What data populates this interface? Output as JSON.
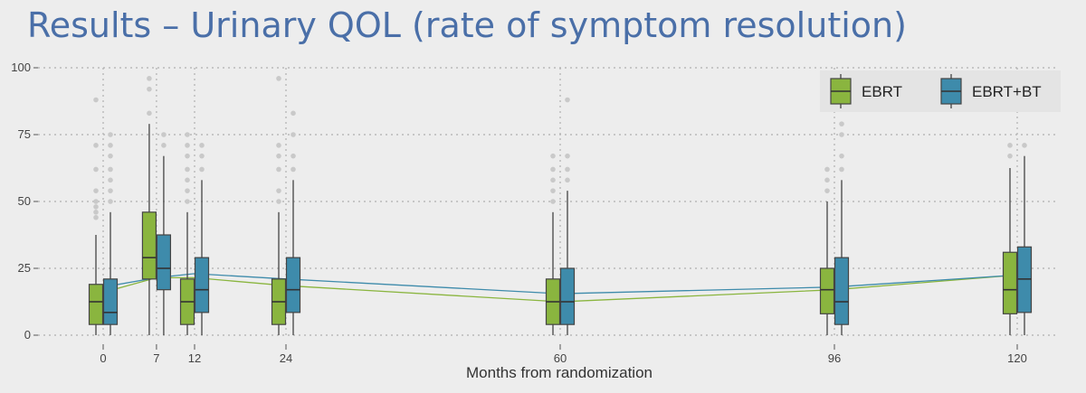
{
  "slide": {
    "title": "Results – Urinary QOL (rate of symptom resolution)"
  },
  "chart_data": {
    "type": "boxplot",
    "title": "",
    "xlabel": "Months from randomization",
    "ylabel": "",
    "x_ticks": [
      0,
      7,
      12,
      24,
      60,
      96,
      120
    ],
    "y_ticks": [
      0,
      25,
      50,
      75,
      100
    ],
    "ylim": [
      0,
      100
    ],
    "grid": true,
    "legend_position": "top-right",
    "series": [
      {
        "name": "EBRT",
        "color": "#8ab53f",
        "boxes": [
          {
            "x": 0,
            "whisker_low": 0,
            "q1": 4,
            "median": 12.5,
            "q3": 19,
            "whisker_high": 37.5,
            "outliers": [
              44,
              46,
              48,
              50,
              54,
              62,
              71,
              88
            ]
          },
          {
            "x": 7,
            "whisker_low": 0,
            "q1": 21,
            "median": 29,
            "q3": 46,
            "whisker_high": 79,
            "outliers": [
              83,
              92,
              96
            ]
          },
          {
            "x": 12,
            "whisker_low": 0,
            "q1": 4,
            "median": 12.5,
            "q3": 21,
            "whisker_high": 46,
            "outliers": [
              50,
              54,
              58,
              62,
              67,
              71,
              75
            ]
          },
          {
            "x": 24,
            "whisker_low": 0,
            "q1": 4,
            "median": 12.5,
            "q3": 21,
            "whisker_high": 46,
            "outliers": [
              50,
              54,
              62,
              67,
              71,
              96
            ]
          },
          {
            "x": 60,
            "whisker_low": 0,
            "q1": 4,
            "median": 12.5,
            "q3": 21,
            "whisker_high": 46,
            "outliers": [
              50,
              54,
              58,
              62,
              67
            ]
          },
          {
            "x": 96,
            "whisker_low": 0,
            "q1": 8,
            "median": 17,
            "q3": 25,
            "whisker_high": 50,
            "outliers": [
              54,
              58,
              62
            ]
          },
          {
            "x": 120,
            "whisker_low": 0,
            "q1": 8,
            "median": 17,
            "q3": 31,
            "whisker_high": 62.5,
            "outliers": [
              67,
              71
            ]
          }
        ],
        "mean_line": [
          16,
          21.5,
          21.5,
          18.5,
          12.5,
          17,
          22.5
        ]
      },
      {
        "name": "EBRT+BT",
        "color": "#3e8bab",
        "boxes": [
          {
            "x": 0,
            "whisker_low": 0,
            "q1": 4,
            "median": 8.5,
            "q3": 21,
            "whisker_high": 46,
            "outliers": [
              50,
              54,
              58,
              62,
              67,
              71,
              75
            ]
          },
          {
            "x": 7,
            "whisker_low": 0,
            "q1": 17,
            "median": 25,
            "q3": 37.5,
            "whisker_high": 67,
            "outliers": [
              71,
              75
            ]
          },
          {
            "x": 12,
            "whisker_low": 0,
            "q1": 8.5,
            "median": 17,
            "q3": 29,
            "whisker_high": 58,
            "outliers": [
              62,
              67,
              71
            ]
          },
          {
            "x": 24,
            "whisker_low": 0,
            "q1": 8.5,
            "median": 17,
            "q3": 29,
            "whisker_high": 58,
            "outliers": [
              62,
              67,
              75,
              83
            ]
          },
          {
            "x": 60,
            "whisker_low": 0,
            "q1": 4,
            "median": 12.5,
            "q3": 25,
            "whisker_high": 54,
            "outliers": [
              58,
              62,
              67,
              88
            ]
          },
          {
            "x": 96,
            "whisker_low": 0,
            "q1": 4,
            "median": 12.5,
            "q3": 29,
            "whisker_high": 58,
            "outliers": [
              62,
              67,
              75,
              79
            ]
          },
          {
            "x": 120,
            "whisker_low": 0,
            "q1": 8.5,
            "median": 21,
            "q3": 33,
            "whisker_high": 67,
            "outliers": [
              71
            ]
          }
        ],
        "mean_line": [
          18,
          21.5,
          23,
          21,
          15.5,
          18,
          22.5
        ]
      }
    ]
  }
}
